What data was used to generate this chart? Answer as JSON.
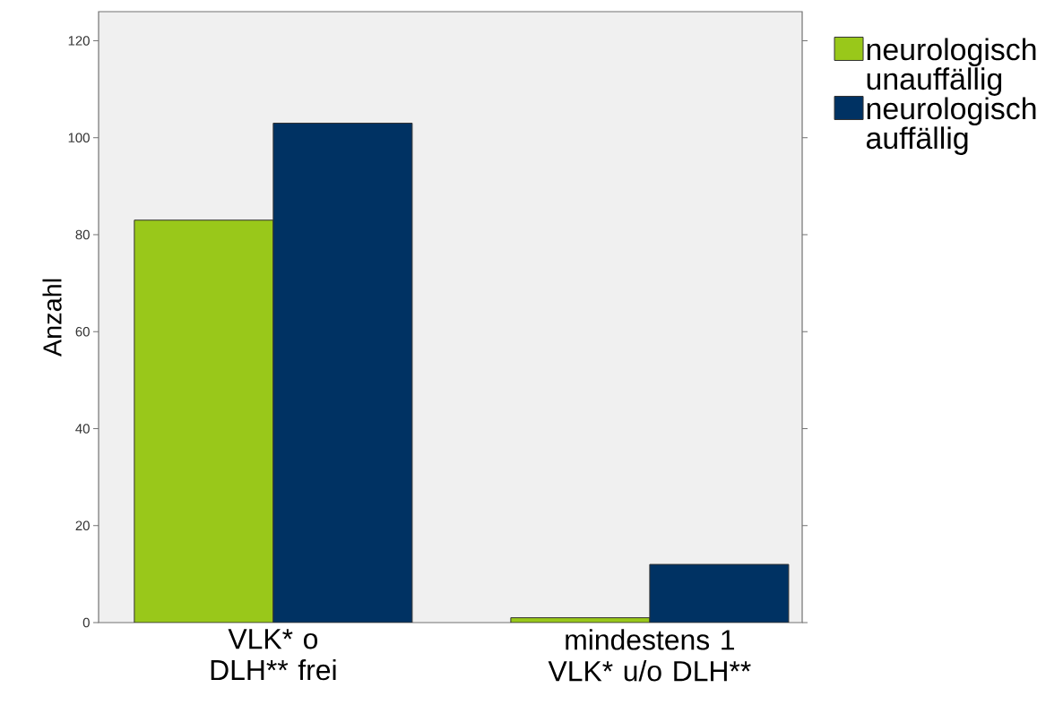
{
  "chart_data": {
    "type": "bar",
    "ylabel": "Anzahl",
    "categories": [
      "VLK* o DLH** frei",
      "mindestens 1 VLK* u/o DLH**"
    ],
    "series": [
      {
        "name": "neurologisch unauffällig",
        "color": "#99c81a",
        "values": [
          83,
          1
        ]
      },
      {
        "name": "neurologisch auffällig",
        "color": "#003263",
        "values": [
          103,
          12
        ]
      }
    ],
    "ylim": [
      0,
      126
    ],
    "yticks": [
      0,
      20,
      40,
      60,
      80,
      100,
      120
    ],
    "legend": "top right"
  }
}
